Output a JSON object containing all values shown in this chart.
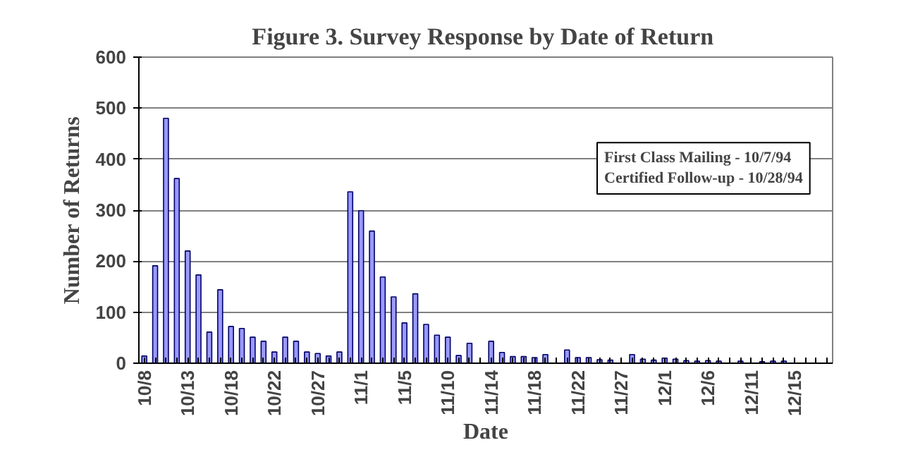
{
  "chart_data": {
    "type": "bar",
    "title": "Figure 3.  Survey Response by Date of Return",
    "xlabel": "Date",
    "ylabel": "Number of Returns",
    "categories": [
      "10/8",
      null,
      null,
      null,
      "10/13",
      null,
      null,
      null,
      "10/18",
      null,
      null,
      null,
      "10/22",
      null,
      null,
      null,
      "10/27",
      null,
      null,
      null,
      "11/1",
      null,
      null,
      null,
      "11/5",
      null,
      null,
      null,
      "11/10",
      null,
      null,
      null,
      "11/14",
      null,
      null,
      null,
      "11/18",
      null,
      null,
      null,
      "11/22",
      null,
      null,
      null,
      "11/27",
      null,
      null,
      null,
      "12/1",
      null,
      null,
      null,
      "12/6",
      null,
      null,
      null,
      "12/11",
      null,
      null,
      null,
      "12/15",
      null,
      null,
      null
    ],
    "values": [
      14,
      191,
      480,
      362,
      220,
      173,
      61,
      144,
      72,
      68,
      51,
      43,
      22,
      51,
      43,
      22,
      19,
      14,
      22,
      336,
      299,
      259,
      169,
      130,
      79,
      136,
      76,
      55,
      51,
      15,
      39,
      null,
      43,
      21,
      13,
      13,
      11,
      17,
      null,
      26,
      11,
      11,
      7,
      6,
      null,
      17,
      8,
      6,
      10,
      8,
      5,
      4,
      5,
      4,
      null,
      4,
      null,
      3,
      4,
      4,
      null,
      null,
      null,
      null
    ],
    "color": "#9999ff",
    "ylim": [
      0,
      600
    ],
    "yticks": [
      0,
      100,
      200,
      300,
      400,
      500,
      600
    ],
    "grid": "y",
    "annotations": [
      "First Class Mailing - 10/7/94\nCertified Follow-up - 10/28/94"
    ]
  }
}
